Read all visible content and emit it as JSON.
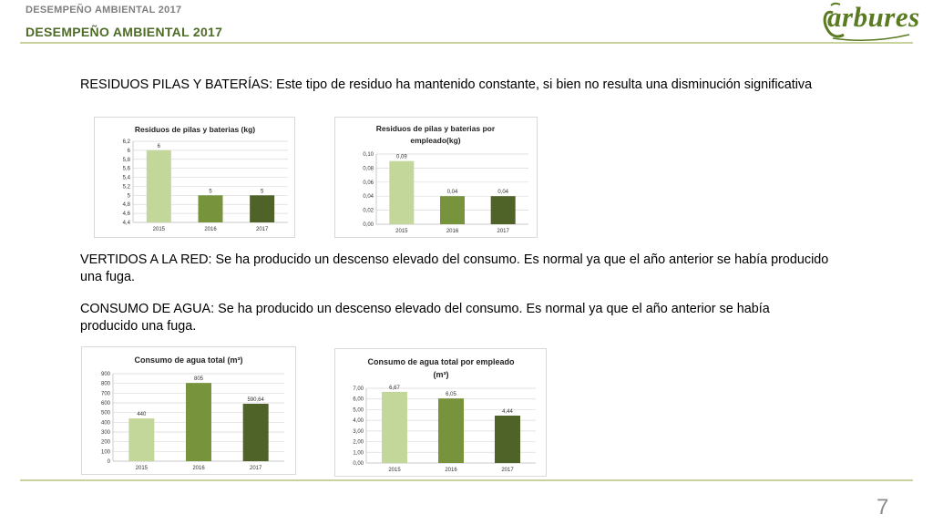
{
  "header": {
    "small_title": "DESEMPEÑO AMBIENTAL 2017",
    "title": "DESEMPEÑO AMBIENTAL 2017",
    "logo_text": "arbures"
  },
  "paragraphs": {
    "residuos": "RESIDUOS PILAS Y BATERÍAS: Este tipo de residuo ha mantenido constante, si bien no resulta una disminución significativa",
    "vertidos_line1": "VERTIDOS A LA RED: Se ha producido un descenso elevado del consumo.  Es normal ya que el año anterior se había producido",
    "vertidos_line2": "una fuga.",
    "consumo_line1": "CONSUMO DE AGUA: Se ha producido un descenso elevado del consumo.  Es normal ya que el año anterior se había",
    "consumo_line2": "producido una fuga."
  },
  "page_number": "7",
  "colors": {
    "bar_2015": "#c4d79b",
    "bar_2016": "#77933c",
    "bar_2017": "#4f6228",
    "accent": "#4e6b27",
    "rule": "#c7d29d"
  },
  "chart_data": [
    {
      "type": "bar",
      "title": "Residuos de pilas y baterias (kg)",
      "categories": [
        "2015",
        "2016",
        "2017"
      ],
      "values": [
        6,
        5,
        5
      ],
      "value_labels": [
        "6",
        "5",
        "5"
      ],
      "ylim": [
        4.4,
        6.2
      ],
      "yticks": [
        "4,4",
        "4,6",
        "4,8",
        "5",
        "5,2",
        "5,4",
        "5,6",
        "5,8",
        "6",
        "6,2"
      ],
      "grid": true,
      "legend": "none"
    },
    {
      "type": "bar",
      "title": "Residuos de pilas y baterias por empleado(kg)",
      "categories": [
        "2015",
        "2016",
        "2017"
      ],
      "values": [
        0.09,
        0.04,
        0.04
      ],
      "value_labels": [
        "0,09",
        "0,04",
        "0,04"
      ],
      "ylim": [
        0,
        0.1
      ],
      "yticks": [
        "0,00",
        "0,02",
        "0,04",
        "0,06",
        "0,08",
        "0,10"
      ],
      "grid": true,
      "legend": "none"
    },
    {
      "type": "bar",
      "title": "Consumo de agua total (m³)",
      "categories": [
        "2015",
        "2016",
        "2017"
      ],
      "values": [
        440,
        805,
        590.64
      ],
      "value_labels": [
        "440",
        "805",
        "590,64"
      ],
      "ylim": [
        0,
        900
      ],
      "yticks": [
        "0",
        "100",
        "200",
        "300",
        "400",
        "500",
        "600",
        "700",
        "800",
        "900"
      ],
      "grid": true,
      "legend": "none"
    },
    {
      "type": "bar",
      "title": "Consumo de agua total por empleado (m³)",
      "categories": [
        "2015",
        "2016",
        "2017"
      ],
      "values": [
        6.67,
        6.05,
        4.44
      ],
      "value_labels": [
        "6,67",
        "6,05",
        "4,44"
      ],
      "ylim": [
        0,
        7
      ],
      "yticks": [
        "0,00",
        "1,00",
        "2,00",
        "3,00",
        "4,00",
        "5,00",
        "6,00",
        "7,00"
      ],
      "grid": true,
      "legend": "none"
    }
  ]
}
